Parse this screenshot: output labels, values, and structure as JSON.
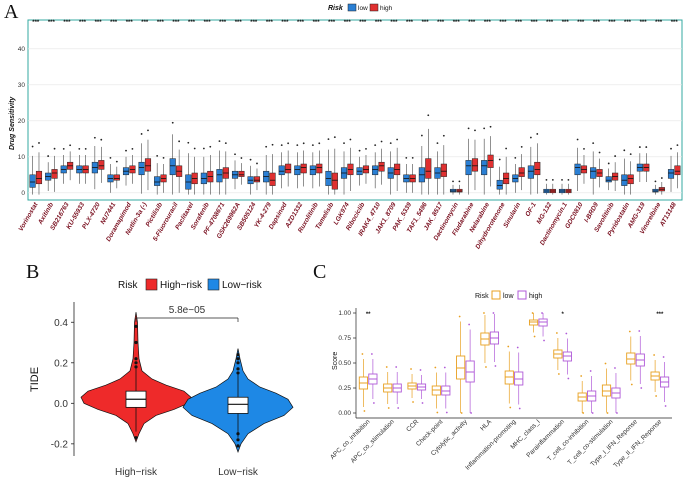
{
  "panels": {
    "a": "A",
    "b": "B",
    "c": "C"
  },
  "chart_data": [
    {
      "type": "boxplot",
      "title": "",
      "xlabel": "",
      "ylabel": "Drug Sensitivity",
      "ylim": [
        -2,
        48
      ],
      "yticks": [
        0,
        10,
        20,
        30,
        40
      ],
      "legend": {
        "title": "Risk",
        "entries": [
          "low",
          "high"
        ],
        "colors": [
          "#2a7fd4",
          "#e03030"
        ],
        "placement": "top-center"
      },
      "significance_label": "***",
      "categories": [
        "Vorinostat",
        "Axitinib",
        "SB216763",
        "KU-55933",
        "PLX-4720",
        "NU7441",
        "Doramapimod",
        "Nutlin-3a (-)",
        "Pictilisib",
        "5-Fluorouracil",
        "Paclitaxel",
        "Sorafenib",
        "PF-4708671",
        "GSK269962A",
        "SB505124",
        "YK-4-279",
        "Dapsinod",
        "AZD1332",
        "Ruxolitinib",
        "Tamelisib",
        "LGK974",
        "Ribociclib",
        "IRAK4_4710",
        "JAK1_8709",
        "PAK_5339",
        "TAF1_5496",
        "JAK_8517",
        "Dactinomycin",
        "Fludarabine",
        "Nelarabine",
        "Dihydrorotenone",
        "Sinularin",
        "OF-1",
        "MG-132",
        "Dactinomycin.1",
        "GDC0810",
        "I-BRD9",
        "Savolitinib",
        "Pyridostatin",
        "AMG-319",
        "Vinorelbine",
        "AT13148"
      ],
      "series": [
        {
          "name": "low",
          "q1": [
            1.5,
            3.5,
            5.5,
            5.5,
            5.5,
            3,
            5,
            5,
            2,
            5,
            1,
            2.5,
            3,
            4,
            2.5,
            3,
            5,
            5,
            5,
            2,
            4,
            5,
            5,
            4,
            3,
            3,
            4,
            0.2,
            5,
            5,
            1,
            3,
            4,
            0,
            0,
            5,
            4,
            3,
            2,
            6,
            0.2,
            4
          ],
          "med": [
            3,
            4.5,
            6.5,
            6.5,
            7,
            4,
            6,
            7,
            3,
            7.5,
            3,
            4,
            5,
            5,
            3.5,
            4.5,
            6,
            6.5,
            6.5,
            4,
            5.5,
            6,
            6.5,
            5.5,
            4,
            5,
            5.5,
            0.5,
            7.5,
            7.5,
            2,
            4,
            6,
            0.5,
            0.5,
            7,
            6,
            3.5,
            3.5,
            7,
            0.5,
            5.5
          ],
          "q3": [
            5,
            5.5,
            7.5,
            7.5,
            8.5,
            5,
            7,
            8.5,
            4.5,
            9.5,
            5,
            5.5,
            6.5,
            6,
            4.5,
            6,
            7.5,
            7.5,
            7.5,
            6,
            7,
            7,
            7.5,
            7,
            5,
            7,
            7,
            1,
            9,
            9,
            3.5,
            5,
            7.5,
            1,
            1,
            8,
            7,
            4.5,
            5,
            8,
            1,
            6.5
          ]
        },
        {
          "name": "high",
          "q1": [
            2.5,
            4,
            6.5,
            5.5,
            6.5,
            3.5,
            5.5,
            6,
            3,
            4.5,
            2.5,
            3,
            4,
            4.5,
            3,
            2,
            5.5,
            5.5,
            5.5,
            1,
            5,
            5.5,
            6,
            5,
            3,
            4,
            4.5,
            0.2,
            6,
            7,
            2.5,
            4.5,
            5,
            0,
            0,
            5.5,
            4.5,
            3.5,
            2.5,
            6,
            0.5,
            5
          ],
          "med": [
            4,
            5.5,
            7.5,
            6.5,
            7.5,
            4,
            6.5,
            7.5,
            4,
            6,
            4,
            4.5,
            5.5,
            5,
            3.5,
            3.5,
            6.5,
            7,
            7,
            3.5,
            6.5,
            6.5,
            7.5,
            6.5,
            4,
            6,
            6,
            0.5,
            7.5,
            9,
            4,
            5.5,
            6.5,
            0.5,
            0.5,
            6.5,
            5.5,
            4.5,
            4,
            7,
            1,
            6
          ],
          "q3": [
            6,
            6.5,
            8.5,
            7.5,
            9,
            5,
            7.5,
            9.5,
            5,
            7.5,
            5.5,
            6,
            7,
            6,
            4.5,
            5.5,
            8,
            8,
            8,
            5.5,
            8,
            7.5,
            8.5,
            8,
            5,
            9.5,
            8,
            1,
            9.5,
            10.5,
            5.5,
            7,
            8.5,
            1,
            1,
            7.5,
            6.5,
            5.5,
            5,
            8,
            1.5,
            7.5
          ]
        }
      ]
    },
    {
      "type": "violin",
      "xlabel": "",
      "ylabel": "TIDE",
      "categories": [
        "High−risk",
        "Low−risk"
      ],
      "ylim": [
        -0.26,
        0.5
      ],
      "yticks": [
        "0.4",
        "0.2",
        "0.0",
        "-0.2"
      ],
      "ytick_values": [
        0.4,
        0.2,
        0.0,
        -0.2
      ],
      "legend": {
        "title": "Risk",
        "entries": [
          "High−risk",
          "Low−risk"
        ],
        "colors": [
          "#ee2a2a",
          "#1e88e5"
        ],
        "placement": "top"
      },
      "pvalue": "5.8e−05",
      "box": [
        {
          "q1": -0.02,
          "med": 0.02,
          "q3": 0.06
        },
        {
          "q1": -0.05,
          "med": -0.005,
          "q3": 0.03
        }
      ]
    },
    {
      "type": "boxplot",
      "ylabel": "Score",
      "ylim": [
        -0.05,
        1.05
      ],
      "yticks": [
        "0.00",
        "0.25",
        "0.50",
        "0.75",
        "1.00"
      ],
      "ytick_values": [
        0,
        0.25,
        0.5,
        0.75,
        1.0
      ],
      "legend": {
        "title": "Risk",
        "entries": [
          "low",
          "high"
        ],
        "colors": [
          "#e8a020",
          "#b05ad8"
        ],
        "placement": "top-center"
      },
      "categories": [
        "APC_co_inhibition",
        "APC_co_stimulation",
        "CCR",
        "Check-point",
        "Cytolytic_activity",
        "HLA",
        "Inflammation-promoting",
        "MHC_class_I",
        "Parainflammation",
        "T_cell_co-inhibition",
        "T_cell_co-stimulation",
        "Type_I_IFN_Reponse",
        "Type_II_IFN_Reponse"
      ],
      "significance": [
        "**",
        "",
        "",
        "",
        "",
        "",
        "",
        "",
        "*",
        "",
        "",
        "",
        "***"
      ],
      "series": [
        {
          "name": "low",
          "q1": [
            0.24,
            0.21,
            0.24,
            0.18,
            0.34,
            0.68,
            0.29,
            0.88,
            0.55,
            0.12,
            0.17,
            0.49,
            0.33
          ],
          "med": [
            0.3,
            0.25,
            0.27,
            0.23,
            0.45,
            0.74,
            0.36,
            0.91,
            0.59,
            0.16,
            0.22,
            0.54,
            0.37
          ],
          "q3": [
            0.36,
            0.29,
            0.3,
            0.27,
            0.57,
            0.8,
            0.42,
            0.93,
            0.63,
            0.2,
            0.28,
            0.6,
            0.41
          ]
        },
        {
          "name": "high",
          "q1": [
            0.29,
            0.21,
            0.23,
            0.18,
            0.31,
            0.69,
            0.28,
            0.87,
            0.52,
            0.12,
            0.15,
            0.47,
            0.26
          ],
          "med": [
            0.34,
            0.25,
            0.26,
            0.22,
            0.41,
            0.75,
            0.34,
            0.91,
            0.57,
            0.17,
            0.2,
            0.53,
            0.31
          ],
          "q3": [
            0.39,
            0.29,
            0.29,
            0.27,
            0.52,
            0.81,
            0.41,
            0.94,
            0.61,
            0.22,
            0.25,
            0.59,
            0.36
          ]
        }
      ]
    }
  ]
}
